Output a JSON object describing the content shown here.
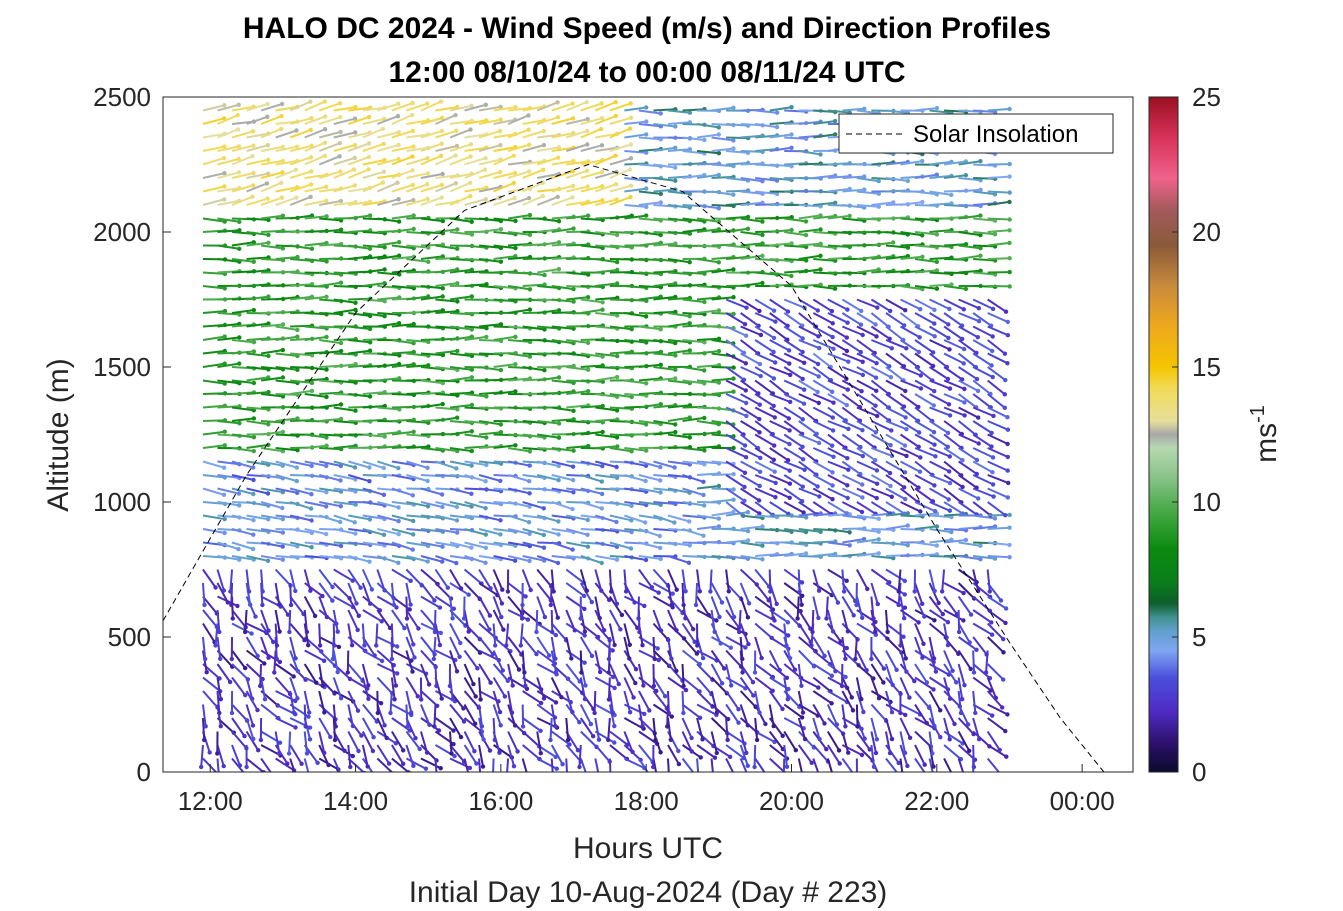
{
  "chart_data": {
    "type": "wind-barb-profile",
    "title_line1": "HALO DC 2024 - Wind Speed (m/s) and Direction Profiles",
    "title_line2": "12:00 08/10/24 to 00:00 08/11/24  UTC",
    "xlabel": "Hours UTC",
    "xlabel2": "Initial Day 10-Aug-2024 (Day # 223)",
    "ylabel": "Altitude (m)",
    "colorbar_label": "ms",
    "colorbar_label_exp": "-1",
    "x_ticks": [
      {
        "hour": 12,
        "label": "12:00"
      },
      {
        "hour": 14,
        "label": "14:00"
      },
      {
        "hour": 16,
        "label": "16:00"
      },
      {
        "hour": 18,
        "label": "18:00"
      },
      {
        "hour": 20,
        "label": "20:00"
      },
      {
        "hour": 22,
        "label": "22:00"
      },
      {
        "hour": 24,
        "label": "00:00"
      }
    ],
    "y_ticks": [
      0,
      500,
      1000,
      1500,
      2000,
      2500
    ],
    "colorbar_ticks": [
      0,
      5,
      10,
      15,
      20,
      25
    ],
    "xlim_hours": [
      11.35,
      24.7
    ],
    "ylim": [
      0,
      2500
    ],
    "clim": [
      0,
      25
    ],
    "legend": {
      "label": "Solar Insolation",
      "position": "top-right"
    },
    "solar_insolation": {
      "description_points": [
        [
          11.35,
          560
        ],
        [
          12.5,
          1100
        ],
        [
          14.0,
          1700
        ],
        [
          15.5,
          2080
        ],
        [
          17.2,
          2250
        ],
        [
          18.5,
          2150
        ],
        [
          20.0,
          1800
        ],
        [
          21.0,
          1350
        ],
        [
          22.0,
          900
        ],
        [
          23.0,
          480
        ],
        [
          23.7,
          200
        ],
        [
          24.3,
          0
        ],
        [
          24.6,
          0
        ]
      ]
    },
    "profiles": {
      "start_hour": 11.9,
      "end_hour": 22.85,
      "step_hours": 0.2,
      "altitude_min": 50,
      "altitude_max": 2490,
      "altitude_step": 50
    },
    "wind_field_regimes": [
      {
        "alt_from": 2100,
        "alt_to": 2500,
        "hours_from": 11.9,
        "hours_to": 17.5,
        "speed_ms": 13.5,
        "dir_deg": 255
      },
      {
        "alt_from": 1200,
        "alt_to": 2100,
        "hours_from": 11.9,
        "hours_to": 22.85,
        "speed_ms": 9.0,
        "dir_deg": 270
      },
      {
        "alt_from": 1000,
        "alt_to": 1800,
        "hours_from": 19.0,
        "hours_to": 22.85,
        "speed_ms": 3.0,
        "dir_deg": 300
      },
      {
        "alt_from": 800,
        "alt_to": 1200,
        "hours_from": 11.9,
        "hours_to": 18.5,
        "speed_ms": 4.5,
        "dir_deg": 280
      },
      {
        "alt_from": 0,
        "alt_to": 800,
        "hours_from": 11.9,
        "hours_to": 22.85,
        "speed_ms": 2.5,
        "dir_deg": 330
      }
    ]
  }
}
